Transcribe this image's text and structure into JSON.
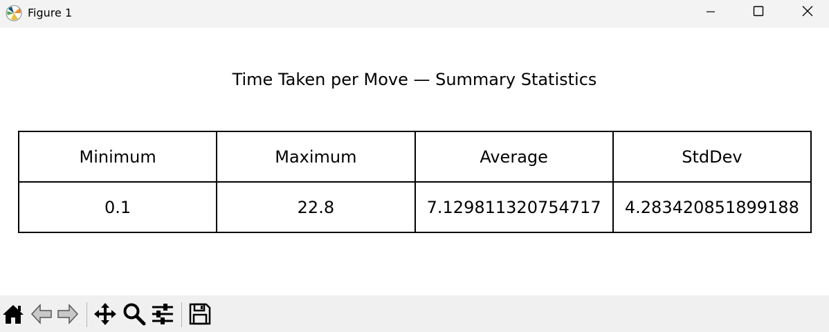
{
  "window": {
    "title": "Figure 1",
    "app_icon": "matplotlib-logo-icon",
    "controls": [
      "minimize-icon",
      "maximize-icon",
      "close-icon"
    ]
  },
  "figure": {
    "title": "Time Taken per Move — Summary Statistics",
    "table": {
      "headers": [
        "Minimum",
        "Maximum",
        "Average",
        "StdDev"
      ],
      "rows": [
        [
          "0.1",
          "22.8",
          "7.129811320754717",
          "4.283420851899188"
        ]
      ]
    }
  },
  "chart_data": {
    "type": "table",
    "title": "Time Taken per Move — Summary Statistics",
    "columns": [
      "Minimum",
      "Maximum",
      "Average",
      "StdDev"
    ],
    "rows": [
      [
        "0.1",
        "22.8",
        "7.129811320754717",
        "4.283420851899188"
      ]
    ]
  },
  "toolbar": {
    "tools": [
      "home-icon",
      "back-arrow-icon",
      "forward-arrow-icon",
      "pan-icon",
      "zoom-icon",
      "configure-subplots-icon",
      "save-icon"
    ]
  },
  "colors": {
    "titlebar_bg": "#f3f3f3",
    "toolbar_bg": "#f0f0f0",
    "canvas_bg": "#ffffff",
    "border": "#000000"
  }
}
